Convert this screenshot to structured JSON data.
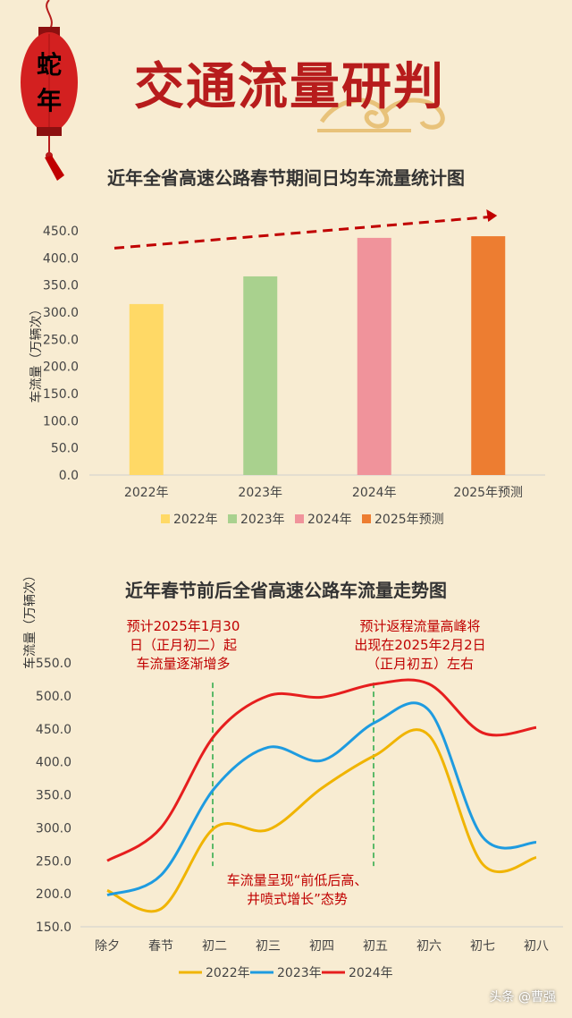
{
  "header": {
    "lantern_chars": [
      "蛇",
      "年"
    ],
    "title": "交通流量研判"
  },
  "chart_data": [
    {
      "type": "bar",
      "title": "近年全省高速公路春节期间日均车流量统计图",
      "ylabel": "车流量（万辆次）",
      "categories": [
        "2022年",
        "2023年",
        "2024年",
        "2025年预测"
      ],
      "values": [
        315,
        366,
        437,
        440
      ],
      "colors": [
        "#ffd966",
        "#a9d18e",
        "#f0939b",
        "#ed7d31"
      ],
      "legend": [
        "2022年",
        "2023年",
        "2024年",
        "2025年预测"
      ],
      "legend_position": "bottom",
      "ylim": [
        0,
        450
      ],
      "yticks": [
        "0.0",
        "50.0",
        "100.0",
        "150.0",
        "200.0",
        "250.0",
        "300.0",
        "350.0",
        "400.0",
        "450.0"
      ],
      "trend_arrow": true
    },
    {
      "type": "line",
      "title": "近年春节前后全省高速公路车流量走势图",
      "ylabel": "车流量（万辆次）",
      "x": [
        "除夕",
        "春节",
        "初二",
        "初三",
        "初四",
        "初五",
        "初六",
        "初七",
        "初八"
      ],
      "ylim": [
        150,
        550
      ],
      "yticks": [
        "150.0",
        "200.0",
        "250.0",
        "300.0",
        "350.0",
        "400.0",
        "450.0",
        "500.0",
        "550.0"
      ],
      "series": [
        {
          "name": "2022年",
          "color": "#f0b400",
          "values": [
            205,
            177,
            300,
            297,
            360,
            410,
            440,
            245,
            255
          ]
        },
        {
          "name": "2023年",
          "color": "#1e9be0",
          "values": [
            198,
            228,
            360,
            422,
            402,
            460,
            478,
            286,
            278
          ]
        },
        {
          "name": "2024年",
          "color": "#e61e1e",
          "values": [
            250,
            300,
            440,
            500,
            498,
            518,
            518,
            444,
            452
          ]
        }
      ],
      "legend_position": "bottom",
      "annotations": [
        "预计2025年1月30\n日（正月初二）起\n车流量逐渐增多",
        "预计返程流量高峰将\n出现在2025年2月2日\n（正月初五）左右",
        "车流量呈现“前低后高、\n井喷式增长”态势"
      ]
    }
  ],
  "watermark": "头条 @曹强"
}
